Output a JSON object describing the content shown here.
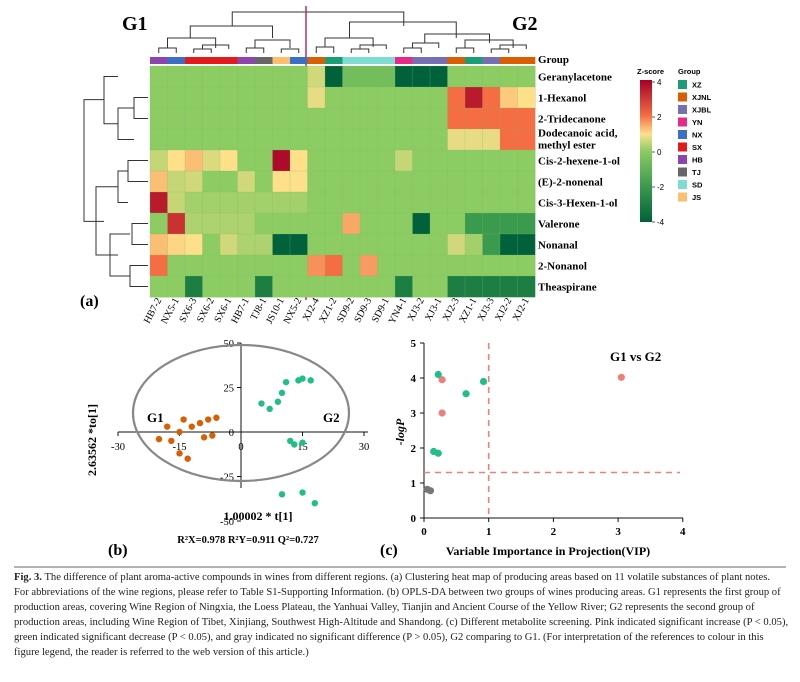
{
  "panels": {
    "a": "(a)",
    "b": "(b)",
    "c": "(c)"
  },
  "heatmap": {
    "group1_label": "G1",
    "group2_label": "G2",
    "group_row_label": "Group",
    "colorbar_title": "Z-score",
    "colorbar_ticks": [
      "4",
      "2",
      "0",
      "-2",
      "-4"
    ],
    "legend_title": "Group",
    "groups": [
      {
        "name": "XZ",
        "color": "#1b9e77"
      },
      {
        "name": "XJNL",
        "color": "#d95f02"
      },
      {
        "name": "XJBL",
        "color": "#7570b3"
      },
      {
        "name": "YN",
        "color": "#e7298a"
      },
      {
        "name": "NX",
        "color": "#3a6fc4"
      },
      {
        "name": "SX",
        "color": "#e31a1c"
      },
      {
        "name": "HB",
        "color": "#8e44ad"
      },
      {
        "name": "TJ",
        "color": "#666666"
      },
      {
        "name": "SD",
        "color": "#7fdcd2"
      },
      {
        "name": "JS",
        "color": "#fdbf6f"
      }
    ],
    "columns": [
      "HB7-2",
      "NX5-1",
      "SX6-3",
      "SX6-2",
      "SX6-1",
      "HB7-1",
      "TJ8-1",
      "JS10-1",
      "NX5-2",
      "XJ2-4",
      "XZ1-2",
      "SD9-2",
      "SD9-3",
      "SD9-1",
      "YN4-1",
      "XJ3-2",
      "XJ3-1",
      "XJ2-3",
      "XZ1-1",
      "XJ3-3",
      "XJ2-2",
      "XJ2-1"
    ],
    "column_groups": [
      "HB",
      "NX",
      "SX",
      "SX",
      "SX",
      "HB",
      "TJ",
      "JS",
      "NX",
      "XJNL",
      "XZ",
      "SD",
      "SD",
      "SD",
      "YN",
      "XJBL",
      "XJBL",
      "XJNL",
      "XZ",
      "XJBL",
      "XJNL",
      "XJNL"
    ],
    "rows": [
      "Geranylacetone",
      "1-Hexanol",
      "2-Tridecanone",
      "Dodecanoic acid, methyl ester",
      "Cis-2-hexene-1-ol",
      "(E)-2-nonenal",
      "Cis-3-Hexen-1-ol",
      "Valerone",
      "Nonanal",
      "2-Nonanol",
      "Theaspirane"
    ],
    "zscores": [
      [
        0,
        0,
        0,
        0,
        0,
        0,
        0,
        0,
        0,
        0.6,
        -4,
        -0.6,
        -0.6,
        -0.6,
        -4,
        -4,
        -4,
        0,
        0,
        0,
        0,
        0
      ],
      [
        0,
        0,
        0,
        0,
        0,
        0,
        0,
        0,
        0,
        0.8,
        0,
        0,
        0,
        0,
        0,
        0,
        0,
        2,
        3.5,
        2,
        1.2,
        1
      ],
      [
        0,
        0,
        0,
        0,
        0,
        0,
        0,
        0,
        0,
        0,
        0,
        0,
        0,
        0,
        0,
        0,
        0,
        2,
        2,
        2,
        2,
        2
      ],
      [
        0,
        0,
        0,
        0,
        0,
        0,
        0,
        0,
        0,
        0,
        0,
        0,
        0,
        0,
        0,
        0,
        0,
        0.8,
        0.8,
        0.8,
        2,
        2
      ],
      [
        0.5,
        1,
        1.3,
        0.7,
        1,
        0,
        0,
        3.8,
        1,
        0,
        0,
        0,
        0,
        0,
        0.5,
        0,
        0,
        0,
        0,
        0,
        0,
        0
      ],
      [
        1.3,
        0.5,
        0.6,
        0,
        0,
        0.6,
        0,
        1,
        1,
        0,
        0,
        0,
        0,
        0,
        0,
        0,
        0,
        0,
        0,
        0,
        0,
        0
      ],
      [
        3.5,
        0.5,
        0.2,
        0.2,
        0.2,
        0.2,
        0.2,
        0.2,
        0.2,
        0,
        0,
        0,
        0,
        0,
        0,
        0,
        0,
        0,
        0,
        0,
        0,
        0
      ],
      [
        0,
        3.1,
        0.3,
        0.3,
        0.3,
        0.3,
        0,
        0,
        0,
        0,
        0,
        1.5,
        0,
        0,
        0,
        -4,
        0,
        0,
        -2,
        -2,
        -2,
        -2
      ],
      [
        1.3,
        1.1,
        1,
        0,
        0.6,
        0.3,
        0.3,
        -4,
        -4,
        0,
        0,
        0,
        0,
        0,
        0,
        0,
        0,
        0.6,
        0.2,
        -2,
        -4,
        -4
      ],
      [
        2,
        0,
        0,
        0,
        0,
        0,
        0,
        0,
        0,
        1.7,
        2,
        0,
        1.6,
        0,
        0,
        0,
        0,
        0,
        0,
        0,
        0,
        0
      ],
      [
        0,
        0,
        -3,
        0,
        0,
        0,
        -3,
        0,
        0,
        0,
        0,
        0,
        0,
        0,
        -3,
        0,
        0,
        -3,
        -3,
        -3,
        -3,
        -3
      ]
    ]
  },
  "oplsda": {
    "x_label": "1.00002 * t[1]",
    "y_label": "2.63562 *to[1]",
    "x_ticks": [
      -30,
      -15,
      0,
      15,
      30
    ],
    "y_ticks": [
      50,
      25,
      0,
      -25,
      -50
    ],
    "g1_label": "G1",
    "g2_label": "G2",
    "stats": "R²X=0.978 R²Y=0.911 Q²=0.727",
    "g1_color": "#d95f02",
    "g2_color": "#1fbf8a",
    "g1_points": [
      [
        -15,
        0
      ],
      [
        -12,
        3
      ],
      [
        -10,
        5
      ],
      [
        -8,
        7
      ],
      [
        -17,
        -5
      ],
      [
        -15,
        -12
      ],
      [
        -13,
        -15
      ],
      [
        -9,
        -3
      ],
      [
        -7,
        -2
      ],
      [
        -6,
        8
      ],
      [
        -20,
        -4
      ],
      [
        -18,
        3
      ],
      [
        -14,
        7
      ]
    ],
    "g2_points": [
      [
        5,
        16
      ],
      [
        7,
        13
      ],
      [
        9,
        17
      ],
      [
        10,
        22
      ],
      [
        11,
        28
      ],
      [
        14,
        29
      ],
      [
        15,
        30
      ],
      [
        17,
        29
      ],
      [
        12,
        -5
      ],
      [
        13,
        -7
      ],
      [
        15,
        -6
      ],
      [
        10,
        -35
      ],
      [
        15,
        -34
      ],
      [
        18,
        -40
      ]
    ]
  },
  "vip": {
    "x_label": "Variable Importance in Projection(VIP)",
    "y_label": "-logP",
    "x_ticks": [
      0,
      1,
      2,
      3,
      4
    ],
    "y_ticks": [
      0,
      1,
      2,
      3,
      4,
      5
    ],
    "title": "G1 vs G2",
    "vip_threshold": 1,
    "p_threshold": 1.3,
    "pink_color": "#f07f7b",
    "green_color": "#1fbf8a",
    "gray_color": "#777777",
    "pink_points": [
      [
        0.28,
        3.95
      ],
      [
        0.28,
        3.0
      ],
      [
        3.05,
        4.02
      ]
    ],
    "green_points": [
      [
        0.22,
        4.1
      ],
      [
        0.65,
        3.55
      ],
      [
        0.92,
        3.9
      ],
      [
        0.15,
        1.9
      ],
      [
        0.22,
        1.85
      ]
    ],
    "gray_points": [
      [
        0.05,
        0.82
      ],
      [
        0.1,
        0.78
      ]
    ]
  },
  "caption": {
    "fig_label": "Fig. 3.",
    "fig_title": "The difference of plant aroma-active compounds in wines from different regions. (a) Clustering heat map of producing areas based on 11 volatile substances of plant notes.",
    "body": "For abbreviations of the wine regions, please refer to Table S1-Supporting Information. (b) OPLS-DA between two groups of wines producing areas. G1 represents the first group of production areas, covering Wine Region of Ningxia, the Loess Plateau, the Yanhuai Valley, Tianjin and Ancient Course of the Yellow River; G2 represents the second group of production areas, including Wine Region of Tibet, Xinjiang, Southwest High-Altitude and Shandong. (c) Different metabolite screening. Pink indicated significant increase (P < 0.05), green indicated significant decrease (P < 0.05), and gray indicated no significant difference (P > 0.05), G2 comparing to G1. (For interpretation of the references to colour in this figure legend, the reader is referred to the web version of this article.)"
  }
}
